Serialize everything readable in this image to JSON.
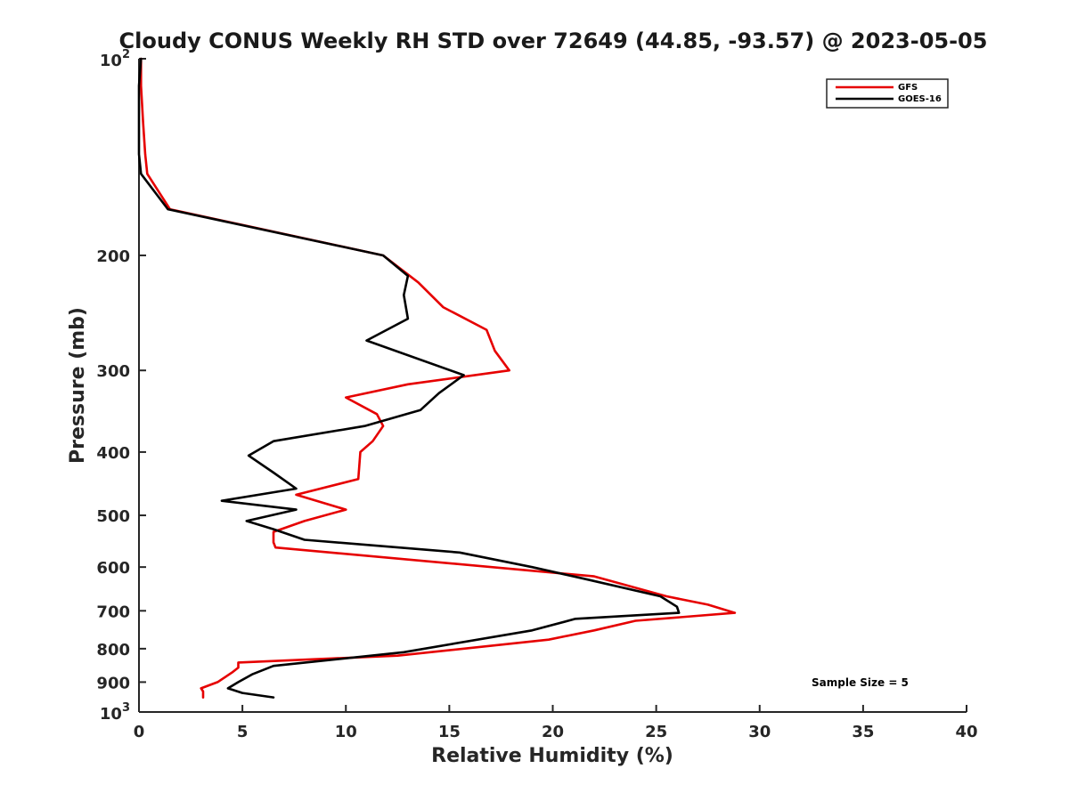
{
  "chart_data": {
    "type": "line",
    "title": "Cloudy CONUS Weekly RH STD over 72649 (44.85, -93.57) @ 2023-05-05",
    "xlabel": "Relative Humidity (%)",
    "ylabel": "Pressure (mb)",
    "xlim": [
      0,
      40
    ],
    "ylim": [
      100,
      1000
    ],
    "y_scale": "log",
    "y_reversed": true,
    "grid": false,
    "legend_position": "top-right",
    "x_ticks": [
      "0",
      "5",
      "10",
      "15",
      "20",
      "25",
      "30",
      "35",
      "40"
    ],
    "y_ticks": [
      {
        "value": 100,
        "base": "10",
        "exp": "2"
      },
      {
        "value": 200,
        "label": "200"
      },
      {
        "value": 300,
        "label": "300"
      },
      {
        "value": 400,
        "label": "400"
      },
      {
        "value": 500,
        "label": "500"
      },
      {
        "value": 600,
        "label": "600"
      },
      {
        "value": 700,
        "label": "700"
      },
      {
        "value": 800,
        "label": "800"
      },
      {
        "value": 900,
        "label": "900"
      },
      {
        "value": 1000,
        "base": "10",
        "exp": "3"
      }
    ],
    "series": [
      {
        "name": "GFS",
        "color": "#e60000",
        "points": [
          [
            0.1,
            100
          ],
          [
            0.1,
            110
          ],
          [
            0.2,
            125
          ],
          [
            0.3,
            140
          ],
          [
            0.4,
            150
          ],
          [
            1.5,
            170
          ],
          [
            11.8,
            200
          ],
          [
            13.5,
            220
          ],
          [
            14.7,
            240
          ],
          [
            16.8,
            260
          ],
          [
            17.2,
            280
          ],
          [
            17.9,
            300
          ],
          [
            13.0,
            315
          ],
          [
            10.0,
            330
          ],
          [
            11.5,
            350
          ],
          [
            11.8,
            365
          ],
          [
            11.3,
            385
          ],
          [
            10.7,
            400
          ],
          [
            10.6,
            440
          ],
          [
            7.6,
            465
          ],
          [
            10.0,
            490
          ],
          [
            8.0,
            510
          ],
          [
            6.5,
            530
          ],
          [
            6.5,
            550
          ],
          [
            6.6,
            560
          ],
          [
            22.0,
            620
          ],
          [
            25.5,
            665
          ],
          [
            27.5,
            685
          ],
          [
            28.8,
            705
          ],
          [
            24.0,
            725
          ],
          [
            22.0,
            750
          ],
          [
            19.8,
            775
          ],
          [
            12.5,
            820
          ],
          [
            4.8,
            840
          ],
          [
            4.8,
            855
          ],
          [
            4.5,
            870
          ],
          [
            3.8,
            900
          ],
          [
            3.0,
            920
          ],
          [
            3.1,
            930
          ],
          [
            3.1,
            950
          ]
        ]
      },
      {
        "name": "GOES-16",
        "color": "#000000",
        "points": [
          [
            0.1,
            100
          ],
          [
            0.0,
            110
          ],
          [
            0.0,
            125
          ],
          [
            0.0,
            140
          ],
          [
            0.1,
            150
          ],
          [
            1.4,
            170
          ],
          [
            11.8,
            200
          ],
          [
            13.0,
            215
          ],
          [
            12.8,
            230
          ],
          [
            13.0,
            250
          ],
          [
            11.0,
            270
          ],
          [
            15.7,
            305
          ],
          [
            14.5,
            325
          ],
          [
            13.6,
            345
          ],
          [
            10.9,
            365
          ],
          [
            6.5,
            385
          ],
          [
            5.3,
            405
          ],
          [
            6.5,
            430
          ],
          [
            7.6,
            455
          ],
          [
            4.0,
            475
          ],
          [
            7.6,
            490
          ],
          [
            5.2,
            510
          ],
          [
            6.5,
            525
          ],
          [
            8.0,
            545
          ],
          [
            15.5,
            570
          ],
          [
            19.0,
            600
          ],
          [
            21.5,
            625
          ],
          [
            25.2,
            665
          ],
          [
            26.0,
            690
          ],
          [
            26.1,
            705
          ],
          [
            21.1,
            720
          ],
          [
            19.0,
            750
          ],
          [
            12.8,
            810
          ],
          [
            6.5,
            850
          ],
          [
            5.5,
            875
          ],
          [
            4.8,
            900
          ],
          [
            4.3,
            920
          ],
          [
            5.0,
            935
          ],
          [
            6.5,
            950
          ]
        ]
      }
    ],
    "annotations": [
      "Sample Size = 5"
    ]
  }
}
